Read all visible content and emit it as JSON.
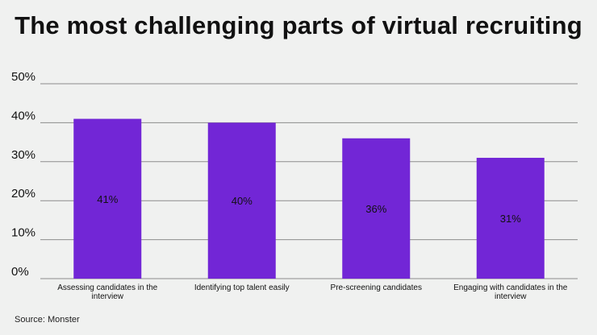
{
  "chart_data": {
    "type": "bar",
    "title": "The most challenging parts of virtual recruiting",
    "categories": [
      [
        "Assessing candidates in the",
        "interview"
      ],
      [
        "Identifying top talent easily"
      ],
      [
        "Pre-screening candidates"
      ],
      [
        "Engaging with candidates in the",
        "interview"
      ]
    ],
    "values": [
      41,
      40,
      36,
      31
    ],
    "data_labels": [
      "41%",
      "40%",
      "36%",
      "31%"
    ],
    "ylim": [
      0,
      50
    ],
    "yticks": [
      0,
      10,
      20,
      30,
      40,
      50
    ],
    "ytick_labels": [
      "0%",
      "10%",
      "20%",
      "30%",
      "40%",
      "50%"
    ],
    "xlabel": "",
    "ylabel": "",
    "grid": true,
    "legend": "none",
    "bar_color": "#7226d6",
    "grid_color": "#8c8c8c",
    "source": "Source: Monster"
  }
}
